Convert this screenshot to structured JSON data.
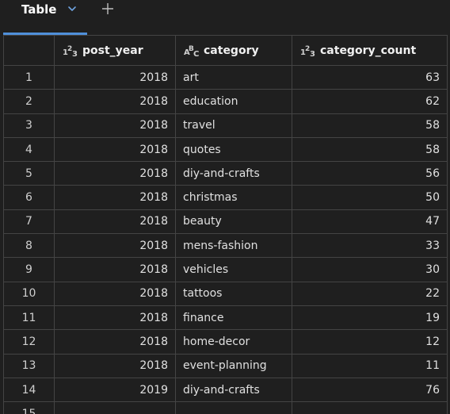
{
  "tab": {
    "label": "Table",
    "chevron_icon": "chevron-down-icon",
    "add_icon": "plus-icon"
  },
  "accent_color": "#4f8fd9",
  "columns": [
    {
      "name": "post_year",
      "type_icon": "numeric-type-icon"
    },
    {
      "name": "category",
      "type_icon": "string-type-icon"
    },
    {
      "name": "category_count",
      "type_icon": "numeric-type-icon"
    }
  ],
  "rows": [
    {
      "idx": "1",
      "post_year": "2018",
      "category": "art",
      "category_count": "63"
    },
    {
      "idx": "2",
      "post_year": "2018",
      "category": "education",
      "category_count": "62"
    },
    {
      "idx": "3",
      "post_year": "2018",
      "category": "travel",
      "category_count": "58"
    },
    {
      "idx": "4",
      "post_year": "2018",
      "category": "quotes",
      "category_count": "58"
    },
    {
      "idx": "5",
      "post_year": "2018",
      "category": "diy-and-crafts",
      "category_count": "56"
    },
    {
      "idx": "6",
      "post_year": "2018",
      "category": "christmas",
      "category_count": "50"
    },
    {
      "idx": "7",
      "post_year": "2018",
      "category": "beauty",
      "category_count": "47"
    },
    {
      "idx": "8",
      "post_year": "2018",
      "category": "mens-fashion",
      "category_count": "33"
    },
    {
      "idx": "9",
      "post_year": "2018",
      "category": "vehicles",
      "category_count": "30"
    },
    {
      "idx": "10",
      "post_year": "2018",
      "category": "tattoos",
      "category_count": "22"
    },
    {
      "idx": "11",
      "post_year": "2018",
      "category": "finance",
      "category_count": "19"
    },
    {
      "idx": "12",
      "post_year": "2018",
      "category": "home-decor",
      "category_count": "12"
    },
    {
      "idx": "13",
      "post_year": "2018",
      "category": "event-planning",
      "category_count": "11"
    },
    {
      "idx": "14",
      "post_year": "2019",
      "category": "diy-and-crafts",
      "category_count": "76"
    },
    {
      "idx": "15",
      "post_year": "",
      "category": "",
      "category_count": ""
    }
  ]
}
